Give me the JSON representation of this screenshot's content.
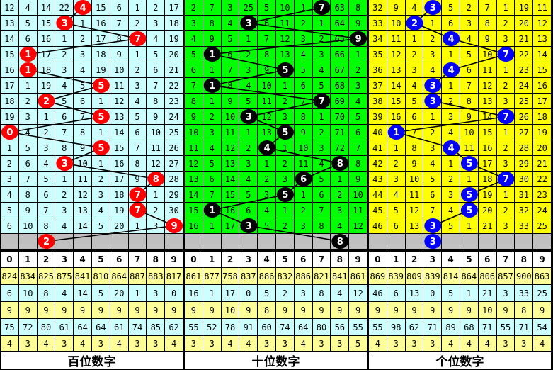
{
  "chart_data": {
    "type": "table",
    "panels": [
      {
        "label": "百位数字",
        "cell_color": "#ccffff",
        "ball_color": "#ff0000",
        "header": [
          "0",
          "1",
          "2",
          "3",
          "4",
          "5",
          "6",
          "7",
          "8",
          "9"
        ],
        "rows": [
          [
            "12",
            "4",
            "14",
            "22",
            "",
            "15",
            "6",
            "1",
            "2",
            "17"
          ],
          [
            "13",
            "5",
            "15",
            "",
            "1",
            "16",
            "7",
            "2",
            "3",
            "18"
          ],
          [
            "14",
            "6",
            "16",
            "1",
            "2",
            "17",
            "8",
            "",
            "4",
            "19"
          ],
          [
            "15",
            "",
            "17",
            "2",
            "3",
            "18",
            "9",
            "1",
            "5",
            "20"
          ],
          [
            "16",
            "",
            "18",
            "3",
            "4",
            "19",
            "10",
            "2",
            "6",
            "21"
          ],
          [
            "17",
            "1",
            "19",
            "4",
            "5",
            "",
            "11",
            "3",
            "7",
            "22"
          ],
          [
            "18",
            "2",
            "",
            "5",
            "6",
            "1",
            "12",
            "4",
            "8",
            "23"
          ],
          [
            "19",
            "3",
            "1",
            "6",
            "7",
            "",
            "13",
            "5",
            "9",
            "24"
          ],
          [
            "",
            "4",
            "2",
            "7",
            "8",
            "1",
            "14",
            "6",
            "10",
            "25"
          ],
          [
            "1",
            "5",
            "3",
            "8",
            "9",
            "",
            "15",
            "7",
            "11",
            "26"
          ],
          [
            "2",
            "6",
            "4",
            "",
            "10",
            "1",
            "16",
            "8",
            "12",
            "27"
          ],
          [
            "3",
            "7",
            "5",
            "1",
            "11",
            "2",
            "17",
            "9",
            "",
            "28"
          ],
          [
            "4",
            "8",
            "6",
            "2",
            "12",
            "3",
            "18",
            "",
            "1",
            "29"
          ],
          [
            "5",
            "9",
            "7",
            "3",
            "13",
            "4",
            "19",
            "",
            "2",
            "30"
          ],
          [
            "6",
            "10",
            "8",
            "4",
            "14",
            "5",
            "20",
            "1",
            "3",
            ""
          ]
        ],
        "hits": [
          "4",
          "3",
          "7",
          "1",
          "1",
          "5",
          "2",
          "5",
          "0",
          "5",
          "3",
          "8",
          "7",
          "7",
          "9"
        ],
        "next": "2",
        "stats": [
          [
            "824",
            "834",
            "825",
            "875",
            "841",
            "810",
            "864",
            "887",
            "883",
            "817"
          ],
          [
            "6",
            "10",
            "8",
            "4",
            "14",
            "5",
            "20",
            "1",
            "3",
            "0"
          ],
          [
            "9",
            "9",
            "9",
            "9",
            "9",
            "9",
            "9",
            "9",
            "9",
            "9"
          ],
          [
            "75",
            "72",
            "80",
            "61",
            "64",
            "64",
            "61",
            "74",
            "85",
            "62"
          ],
          [
            "4",
            "3",
            "4",
            "3",
            "4",
            "3",
            "4",
            "3",
            "3",
            "4"
          ]
        ]
      },
      {
        "label": "十位数字",
        "cell_color": "#00ff00",
        "ball_color": "#000000",
        "header": [
          "0",
          "1",
          "2",
          "3",
          "4",
          "5",
          "6",
          "7",
          "8",
          "9"
        ],
        "rows": [
          [
            "2",
            "7",
            "3",
            "25",
            "5",
            "10",
            "1",
            "",
            "63",
            "8"
          ],
          [
            "3",
            "8",
            "4",
            "",
            "6",
            "11",
            "2",
            "1",
            "64",
            "9"
          ],
          [
            "4",
            "9",
            "5",
            "1",
            "7",
            "12",
            "3",
            "2",
            "65",
            ""
          ],
          [
            "5",
            "",
            "6",
            "2",
            "8",
            "13",
            "4",
            "3",
            "66",
            "1"
          ],
          [
            "6",
            "1",
            "7",
            "3",
            "9",
            "",
            "5",
            "4",
            "67",
            "2"
          ],
          [
            "7",
            "",
            "8",
            "4",
            "10",
            "1",
            "6",
            "5",
            "68",
            "3"
          ],
          [
            "8",
            "1",
            "9",
            "5",
            "11",
            "2",
            "7",
            "",
            "69",
            "4"
          ],
          [
            "9",
            "2",
            "10",
            "",
            "12",
            "3",
            "8",
            "1",
            "70",
            "5"
          ],
          [
            "10",
            "3",
            "11",
            "1",
            "13",
            "",
            "9",
            "2",
            "71",
            "6"
          ],
          [
            "11",
            "4",
            "12",
            "2",
            "",
            "1",
            "10",
            "3",
            "72",
            "7"
          ],
          [
            "12",
            "5",
            "13",
            "3",
            "1",
            "2",
            "11",
            "4",
            "",
            "8"
          ],
          [
            "13",
            "6",
            "14",
            "4",
            "2",
            "3",
            "",
            "5",
            "1",
            "9"
          ],
          [
            "14",
            "7",
            "15",
            "5",
            "3",
            "",
            "1",
            "6",
            "2",
            "10"
          ],
          [
            "15",
            "",
            "16",
            "6",
            "4",
            "1",
            "2",
            "7",
            "3",
            "11"
          ],
          [
            "16",
            "1",
            "17",
            "",
            "5",
            "2",
            "3",
            "8",
            "4",
            "12"
          ]
        ],
        "hits": [
          "7",
          "3",
          "9",
          "1",
          "5",
          "1",
          "7",
          "3",
          "5",
          "4",
          "8",
          "6",
          "5",
          "1",
          "3"
        ],
        "next": "8",
        "stats": [
          [
            "861",
            "877",
            "758",
            "837",
            "886",
            "832",
            "886",
            "821",
            "841",
            "861"
          ],
          [
            "16",
            "1",
            "17",
            "0",
            "5",
            "2",
            "3",
            "8",
            "4",
            "12"
          ],
          [
            "9",
            "9",
            "10",
            "9",
            "8",
            "9",
            "9",
            "9",
            "9",
            "9"
          ],
          [
            "55",
            "52",
            "78",
            "91",
            "60",
            "74",
            "64",
            "80",
            "56",
            "55"
          ],
          [
            "3",
            "3",
            "4",
            "4",
            "3",
            "3",
            "4",
            "3",
            "3",
            "5"
          ]
        ]
      },
      {
        "label": "个位数字",
        "cell_color": "#ffff00",
        "ball_color": "#0000ff",
        "header": [
          "0",
          "1",
          "2",
          "3",
          "4",
          "5",
          "6",
          "7",
          "8",
          "9"
        ],
        "rows": [
          [
            "32",
            "9",
            "4",
            "",
            "5",
            "2",
            "7",
            "1",
            "19",
            "11"
          ],
          [
            "33",
            "10",
            "",
            "1",
            "6",
            "3",
            "8",
            "2",
            "20",
            "12"
          ],
          [
            "34",
            "11",
            "1",
            "2",
            "",
            "4",
            "9",
            "3",
            "21",
            "13"
          ],
          [
            "35",
            "12",
            "2",
            "3",
            "1",
            "5",
            "10",
            "",
            "22",
            "14"
          ],
          [
            "36",
            "13",
            "3",
            "4",
            "",
            "6",
            "11",
            "1",
            "23",
            "15"
          ],
          [
            "37",
            "14",
            "4",
            "",
            "1",
            "7",
            "12",
            "2",
            "24",
            "16"
          ],
          [
            "38",
            "15",
            "5",
            "",
            "2",
            "8",
            "13",
            "3",
            "25",
            "17"
          ],
          [
            "39",
            "16",
            "6",
            "1",
            "3",
            "9",
            "14",
            "",
            "26",
            "18"
          ],
          [
            "40",
            "",
            "7",
            "2",
            "4",
            "10",
            "15",
            "1",
            "27",
            "19"
          ],
          [
            "41",
            "1",
            "8",
            "3",
            "",
            "11",
            "16",
            "2",
            "28",
            "20"
          ],
          [
            "42",
            "2",
            "9",
            "4",
            "1",
            "",
            "17",
            "3",
            "29",
            "21"
          ],
          [
            "43",
            "3",
            "10",
            "5",
            "2",
            "1",
            "18",
            "",
            "30",
            "22"
          ],
          [
            "44",
            "4",
            "11",
            "6",
            "3",
            "",
            "19",
            "1",
            "31",
            "23"
          ],
          [
            "45",
            "5",
            "12",
            "7",
            "4",
            "",
            "20",
            "2",
            "32",
            "24"
          ],
          [
            "46",
            "6",
            "13",
            "",
            "5",
            "1",
            "21",
            "3",
            "33",
            "25"
          ]
        ],
        "hits": [
          "3",
          "2",
          "4",
          "7",
          "4",
          "3",
          "3",
          "7",
          "1",
          "4",
          "5",
          "7",
          "5",
          "5",
          "3"
        ],
        "next": "3",
        "stats": [
          [
            "869",
            "839",
            "809",
            "839",
            "814",
            "864",
            "806",
            "857",
            "900",
            "863"
          ],
          [
            "46",
            "6",
            "13",
            "0",
            "5",
            "1",
            "21",
            "3",
            "33",
            "25"
          ],
          [
            "9",
            "9",
            "9",
            "9",
            "9",
            "9",
            "10",
            "9",
            "8",
            "9"
          ],
          [
            "55",
            "98",
            "62",
            "71",
            "89",
            "68",
            "71",
            "55",
            "71",
            "54"
          ],
          [
            "4",
            "3",
            "3",
            "3",
            "4",
            "4",
            "4",
            "3",
            "3",
            "4"
          ]
        ]
      }
    ],
    "stats_colors": [
      "#ffff99",
      "#ccffff",
      "#ffff99",
      "#ccffff",
      "#ffff99"
    ],
    "gray_color": "#c0c0c0"
  }
}
